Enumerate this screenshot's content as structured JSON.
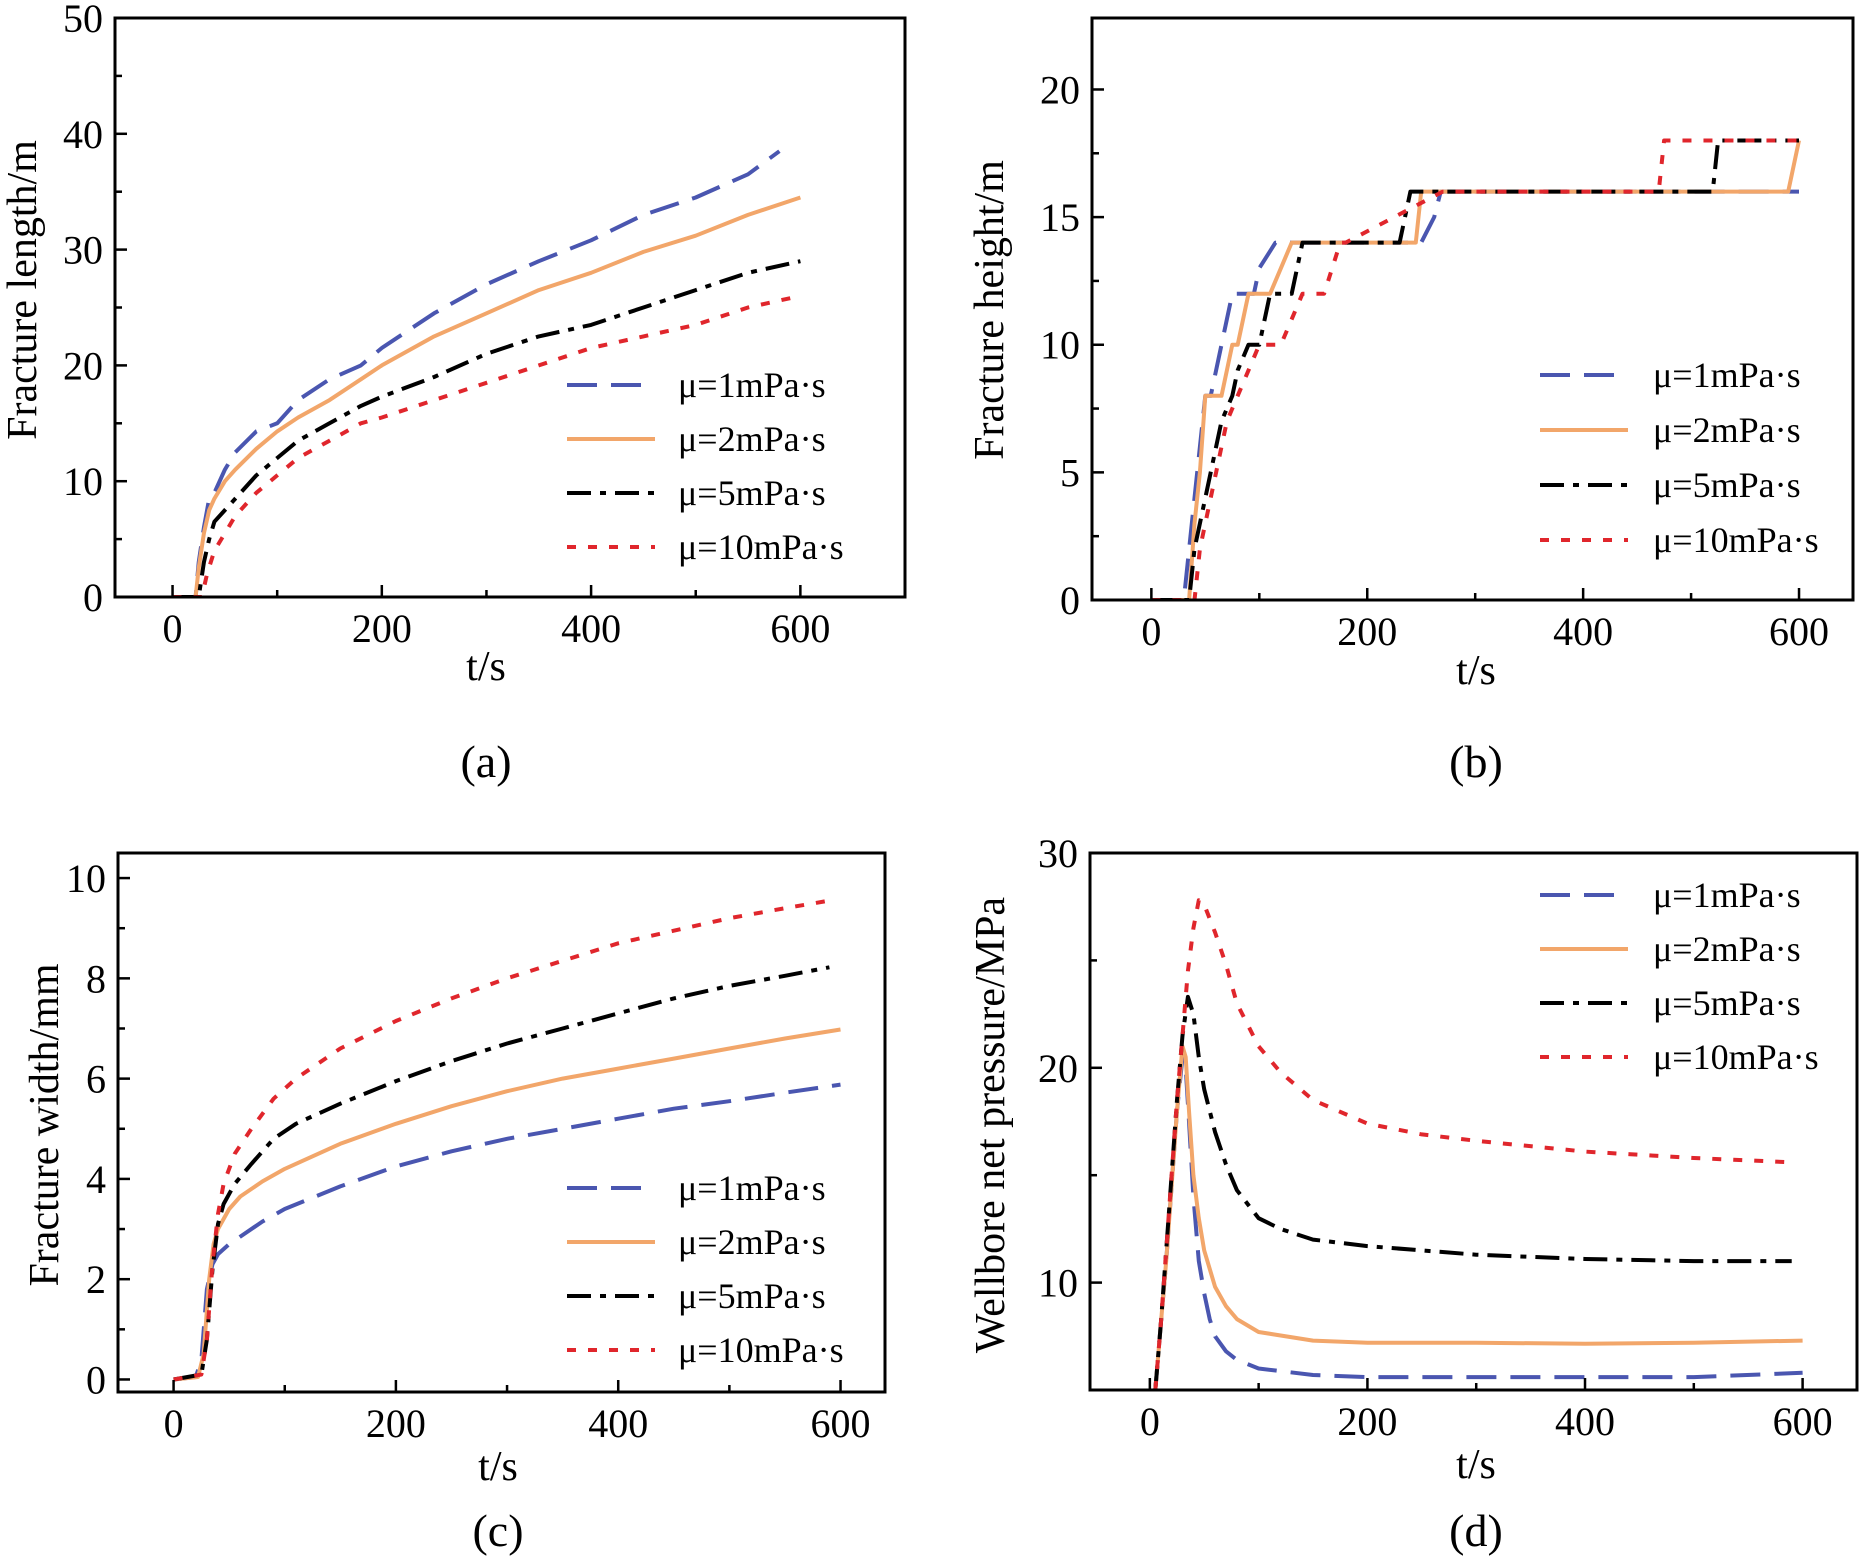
{
  "colors": {
    "mu1": "#4a56b0",
    "mu2": "#f2a66a",
    "mu5": "#000000",
    "mu10": "#e0262c"
  },
  "chart_data": [
    {
      "panel": "a",
      "caption": "(a)",
      "type": "line",
      "xlabel": "t/s",
      "ylabel": "Fracture length/m",
      "xlim": [
        -55,
        700
      ],
      "ylim": [
        0,
        50
      ],
      "xticks": [
        0,
        200,
        400,
        600
      ],
      "yticks": [
        0,
        10,
        20,
        30,
        40,
        50
      ],
      "legend_position": "center-right",
      "series": [
        {
          "name": "μ=1mPa·s",
          "dash": "dash",
          "color_key": "mu1",
          "x": [
            0,
            22,
            25,
            30,
            35,
            40,
            50,
            60,
            80,
            100,
            120,
            150,
            180,
            200,
            250,
            300,
            350,
            400,
            450,
            500,
            550,
            580
          ],
          "y": [
            0,
            0,
            3,
            6,
            8.5,
            9,
            11,
            12.5,
            14.3,
            15,
            17,
            18.8,
            20,
            21.5,
            24.5,
            27,
            29,
            30.8,
            33,
            34.5,
            36.5,
            38.5
          ]
        },
        {
          "name": "μ=2mPa·s",
          "dash": "solid",
          "color_key": "mu2",
          "x": [
            0,
            22,
            25,
            30,
            35,
            40,
            50,
            60,
            80,
            100,
            120,
            150,
            180,
            200,
            250,
            300,
            350,
            400,
            450,
            500,
            550,
            600
          ],
          "y": [
            0,
            0,
            2.5,
            5.5,
            7.5,
            8.5,
            10,
            11,
            12.8,
            14.3,
            15.5,
            17,
            18.8,
            20,
            22.5,
            24.5,
            26.5,
            28,
            29.8,
            31.2,
            33,
            34.5
          ]
        },
        {
          "name": "μ=5mPa·s",
          "dash": "dashdot",
          "color_key": "mu5",
          "x": [
            0,
            25,
            30,
            35,
            40,
            50,
            60,
            80,
            100,
            120,
            150,
            180,
            200,
            250,
            300,
            350,
            400,
            450,
            500,
            550,
            600
          ],
          "y": [
            0,
            0,
            3,
            5,
            6.5,
            7.5,
            8.5,
            10.5,
            12,
            13.5,
            15,
            16.5,
            17.3,
            19,
            21,
            22.5,
            23.5,
            25,
            26.5,
            28,
            29
          ]
        },
        {
          "name": "μ=10mPa·s",
          "dash": "dot",
          "color_key": "mu10",
          "x": [
            0,
            28,
            33,
            40,
            50,
            60,
            80,
            100,
            120,
            150,
            180,
            200,
            250,
            300,
            350,
            400,
            450,
            500,
            550,
            600
          ],
          "y": [
            0,
            0,
            2,
            4,
            5.5,
            7,
            9,
            10.5,
            12,
            13.5,
            15,
            15.5,
            17,
            18.5,
            20,
            21.5,
            22.5,
            23.5,
            25,
            26
          ]
        }
      ]
    },
    {
      "panel": "b",
      "caption": "(b)",
      "type": "line",
      "xlabel": "t/s",
      "ylabel": "Fracture height/m",
      "xlim": [
        -55,
        650
      ],
      "ylim": [
        0,
        22.8
      ],
      "xticks": [
        0,
        200,
        400,
        600
      ],
      "yticks": [
        0,
        5,
        10,
        15,
        20
      ],
      "legend_position": "center-right",
      "series": [
        {
          "name": "μ=1mPa·s",
          "dash": "dash",
          "color_key": "mu1",
          "x": [
            0,
            30,
            40,
            45,
            50,
            55,
            60,
            65,
            70,
            75,
            80,
            85,
            95,
            100,
            115,
            118,
            250,
            262,
            268,
            600
          ],
          "y": [
            0,
            0,
            4,
            6,
            8,
            8,
            9,
            10,
            11,
            12,
            12,
            12,
            12,
            13,
            14,
            14,
            14,
            15,
            16,
            16
          ]
        },
        {
          "name": "μ=2mPa·s",
          "dash": "solid",
          "color_key": "mu2",
          "x": [
            0,
            35,
            40,
            45,
            50,
            55,
            65,
            70,
            75,
            80,
            85,
            90,
            100,
            110,
            120,
            130,
            245,
            250,
            590,
            600
          ],
          "y": [
            0,
            0,
            3,
            5,
            8,
            8,
            8,
            9,
            10,
            10,
            11,
            12,
            12,
            12,
            13,
            14,
            14,
            16,
            16,
            18
          ]
        },
        {
          "name": "μ=5mPa·s",
          "dash": "dashdot",
          "color_key": "mu5",
          "x": [
            0,
            30,
            35,
            40,
            45,
            55,
            60,
            65,
            75,
            80,
            90,
            100,
            110,
            130,
            140,
            150,
            230,
            235,
            240,
            520,
            525,
            600
          ],
          "y": [
            0,
            0,
            0,
            2,
            3,
            5,
            6,
            7,
            8,
            9,
            10,
            10,
            12,
            12,
            14,
            14,
            14,
            15,
            16,
            16,
            18,
            18
          ]
        },
        {
          "name": "μ=10mPa·s",
          "dash": "dot",
          "color_key": "mu10",
          "x": [
            0,
            40,
            45,
            50,
            60,
            65,
            70,
            80,
            90,
            100,
            120,
            140,
            160,
            175,
            180,
            270,
            470,
            475,
            600
          ],
          "y": [
            0,
            0,
            2,
            3,
            5,
            6,
            7,
            8,
            9,
            10,
            10,
            12,
            12,
            14,
            14,
            16,
            16,
            18,
            18
          ]
        }
      ]
    },
    {
      "panel": "c",
      "caption": "(c)",
      "type": "line",
      "xlabel": "t/s",
      "ylabel": "Fracture width/mm",
      "xlim": [
        -50,
        640
      ],
      "ylim": [
        -0.25,
        10.5
      ],
      "xticks": [
        0,
        200,
        400,
        600
      ],
      "yticks": [
        0,
        2,
        4,
        6,
        8,
        10
      ],
      "legend_position": "lower-right",
      "series": [
        {
          "name": "μ=1mPa·s",
          "dash": "dash",
          "color_key": "mu1",
          "x": [
            0,
            20,
            25,
            30,
            35,
            40,
            50,
            60,
            80,
            100,
            150,
            200,
            250,
            300,
            350,
            400,
            450,
            500,
            550,
            600
          ],
          "y": [
            0,
            0.05,
            0.4,
            1.8,
            2.3,
            2.5,
            2.7,
            2.85,
            3.15,
            3.4,
            3.85,
            4.25,
            4.55,
            4.8,
            5.0,
            5.2,
            5.4,
            5.55,
            5.72,
            5.88
          ]
        },
        {
          "name": "μ=2mPa·s",
          "dash": "solid",
          "color_key": "mu2",
          "x": [
            0,
            22,
            27,
            32,
            36,
            40,
            50,
            60,
            80,
            100,
            150,
            200,
            250,
            300,
            350,
            400,
            450,
            500,
            550,
            600
          ],
          "y": [
            0,
            0.05,
            0.5,
            2.0,
            2.7,
            3.0,
            3.4,
            3.65,
            3.95,
            4.2,
            4.7,
            5.1,
            5.45,
            5.75,
            6.0,
            6.2,
            6.4,
            6.6,
            6.8,
            6.98
          ]
        },
        {
          "name": "μ=5mPa·s",
          "dash": "dashdot",
          "color_key": "mu5",
          "x": [
            0,
            25,
            30,
            35,
            40,
            45,
            55,
            70,
            90,
            110,
            150,
            200,
            250,
            300,
            350,
            400,
            450,
            500,
            550,
            590
          ],
          "y": [
            0,
            0.1,
            0.8,
            2.2,
            3.1,
            3.5,
            3.9,
            4.3,
            4.8,
            5.1,
            5.5,
            5.95,
            6.35,
            6.7,
            7.0,
            7.3,
            7.6,
            7.85,
            8.05,
            8.22
          ]
        },
        {
          "name": "μ=10mPa·s",
          "dash": "dot",
          "color_key": "mu10",
          "x": [
            0,
            25,
            30,
            35,
            40,
            45,
            55,
            70,
            90,
            110,
            150,
            200,
            250,
            300,
            350,
            400,
            450,
            500,
            550,
            590
          ],
          "y": [
            0,
            0.1,
            0.8,
            2.3,
            3.3,
            3.9,
            4.5,
            5.0,
            5.6,
            6.0,
            6.6,
            7.15,
            7.6,
            8.0,
            8.35,
            8.7,
            8.95,
            9.2,
            9.4,
            9.55
          ]
        }
      ]
    },
    {
      "panel": "d",
      "caption": "(d)",
      "type": "line",
      "xlabel": "t/s",
      "ylabel": "Wellbore net pressure/MPa",
      "xlim": [
        -55,
        650
      ],
      "ylim": [
        5,
        30
      ],
      "xticks": [
        0,
        200,
        400,
        600
      ],
      "yticks": [
        10,
        20,
        30
      ],
      "legend_position": "upper-right",
      "series": [
        {
          "name": "μ=1mPa·s",
          "dash": "dash",
          "color_key": "mu1",
          "x": [
            5,
            10,
            15,
            20,
            25,
            30,
            33,
            36,
            40,
            45,
            50,
            55,
            60,
            70,
            80,
            100,
            150,
            200,
            300,
            400,
            500,
            600
          ],
          "y": [
            5,
            8,
            11,
            14.5,
            18,
            20.5,
            20,
            17.5,
            14,
            11,
            9.5,
            8.3,
            7.5,
            6.8,
            6.4,
            6.0,
            5.7,
            5.6,
            5.6,
            5.6,
            5.6,
            5.8
          ]
        },
        {
          "name": "μ=2mPa·s",
          "dash": "solid",
          "color_key": "mu2",
          "x": [
            5,
            10,
            15,
            20,
            25,
            30,
            33,
            36,
            40,
            45,
            50,
            60,
            70,
            80,
            100,
            150,
            200,
            300,
            400,
            500,
            600
          ],
          "y": [
            5,
            8,
            11,
            14.5,
            18,
            21,
            20.5,
            18,
            15,
            13,
            11.5,
            9.8,
            8.9,
            8.3,
            7.7,
            7.3,
            7.2,
            7.2,
            7.15,
            7.2,
            7.3
          ]
        },
        {
          "name": "μ=5mPa·s",
          "dash": "dashdot",
          "color_key": "mu5",
          "x": [
            5,
            10,
            15,
            20,
            25,
            30,
            35,
            40,
            45,
            50,
            60,
            70,
            80,
            100,
            120,
            150,
            200,
            250,
            300,
            400,
            500,
            590
          ],
          "y": [
            5,
            8,
            11.5,
            15,
            18.5,
            21.5,
            23.3,
            22.5,
            20.5,
            19,
            17,
            15.5,
            14.3,
            13,
            12.5,
            12,
            11.7,
            11.5,
            11.3,
            11.1,
            11.0,
            11.0
          ]
        },
        {
          "name": "μ=10mPa·s",
          "dash": "dot",
          "color_key": "mu10",
          "x": [
            5,
            10,
            15,
            20,
            25,
            30,
            35,
            40,
            45,
            50,
            60,
            70,
            80,
            100,
            120,
            150,
            200,
            250,
            300,
            400,
            500,
            590
          ],
          "y": [
            5,
            8,
            11.5,
            15,
            18.5,
            21.5,
            24.5,
            26.5,
            27.8,
            27.6,
            26.3,
            24.8,
            23,
            21,
            19.8,
            18.5,
            17.4,
            16.9,
            16.6,
            16.1,
            15.8,
            15.6
          ]
        }
      ]
    }
  ]
}
